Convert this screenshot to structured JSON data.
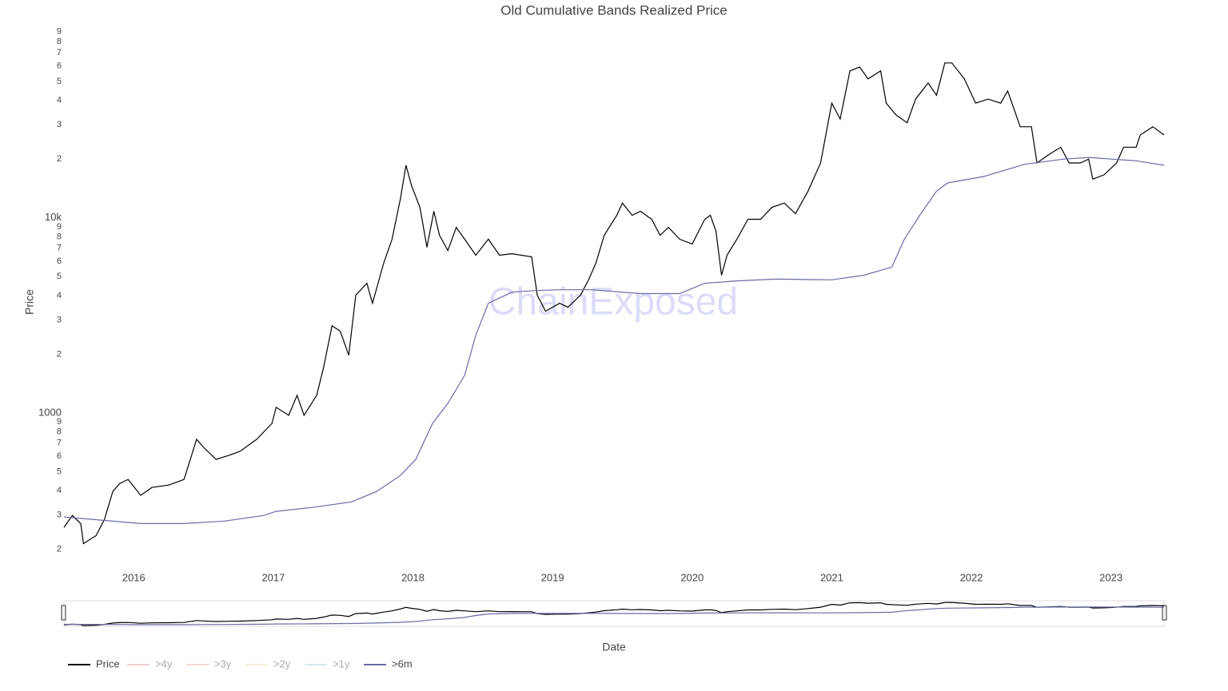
{
  "chart_data": {
    "type": "line",
    "title": "Old Cumulative Bands Realized Price",
    "watermark": "ChainExposed",
    "xlabel": "Date",
    "ylabel": "Price",
    "log_y": true,
    "grid": false,
    "legend": "bottom-left",
    "xlim": [
      2015.5,
      2023.38
    ],
    "xticks": [
      2016,
      2017,
      2018,
      2019,
      2020,
      2021,
      2022,
      2023
    ],
    "ylim": [
      178,
      94000
    ],
    "yticks": [
      {
        "value": 200,
        "label": "2"
      },
      {
        "value": 300,
        "label": "3"
      },
      {
        "value": 400,
        "label": "4"
      },
      {
        "value": 500,
        "label": "5"
      },
      {
        "value": 600,
        "label": "6"
      },
      {
        "value": 700,
        "label": "7"
      },
      {
        "value": 800,
        "label": "8"
      },
      {
        "value": 900,
        "label": "9"
      },
      1000,
      {
        "value": 2000,
        "label": "2"
      },
      {
        "value": 3000,
        "label": "3"
      },
      {
        "value": 4000,
        "label": "4"
      },
      {
        "value": 5000,
        "label": "5"
      },
      {
        "value": 6000,
        "label": "6"
      },
      {
        "value": 7000,
        "label": "7"
      },
      {
        "value": 8000,
        "label": "8"
      },
      {
        "value": 9000,
        "label": "9"
      },
      {
        "value": 10000,
        "label": "10k"
      },
      {
        "value": 20000,
        "label": "2"
      },
      {
        "value": 30000,
        "label": "3"
      },
      {
        "value": 40000,
        "label": "4"
      },
      {
        "value": 50000,
        "label": "5"
      },
      {
        "value": 60000,
        "label": "6"
      },
      {
        "value": 70000,
        "label": "7"
      },
      {
        "value": 80000,
        "label": "8"
      },
      {
        "value": 90000,
        "label": "9"
      }
    ],
    "series": [
      {
        "name": "Price",
        "color": "#000000",
        "visible": true,
        "x": [
          2015.5,
          2015.56,
          2015.62,
          2015.64,
          2015.73,
          2015.79,
          2015.85,
          2015.9,
          2015.96,
          2016.05,
          2016.13,
          2016.25,
          2016.36,
          2016.45,
          2016.5,
          2016.59,
          2016.68,
          2016.76,
          2016.88,
          2016.99,
          2017.02,
          2017.11,
          2017.17,
          2017.22,
          2017.31,
          2017.36,
          2017.42,
          2017.48,
          2017.54,
          2017.59,
          2017.67,
          2017.71,
          2017.79,
          2017.85,
          2017.91,
          2017.95,
          2017.99,
          2018.05,
          2018.1,
          2018.15,
          2018.19,
          2018.25,
          2018.31,
          2018.37,
          2018.45,
          2018.54,
          2018.62,
          2018.71,
          2018.85,
          2018.89,
          2018.95,
          2019.05,
          2019.11,
          2019.2,
          2019.26,
          2019.31,
          2019.37,
          2019.46,
          2019.5,
          2019.57,
          2019.63,
          2019.71,
          2019.77,
          2019.83,
          2019.91,
          2020.0,
          2020.09,
          2020.13,
          2020.17,
          2020.21,
          2020.25,
          2020.32,
          2020.4,
          2020.49,
          2020.57,
          2020.66,
          2020.74,
          2020.83,
          2020.92,
          2021.0,
          2021.06,
          2021.13,
          2021.2,
          2021.26,
          2021.35,
          2021.39,
          2021.46,
          2021.54,
          2021.6,
          2021.69,
          2021.75,
          2021.81,
          2021.86,
          2021.95,
          2022.03,
          2022.12,
          2022.21,
          2022.26,
          2022.35,
          2022.43,
          2022.47,
          2022.55,
          2022.64,
          2022.7,
          2022.78,
          2022.84,
          2022.87,
          2022.95,
          2023.04,
          2023.09,
          2023.18,
          2023.21,
          2023.3,
          2023.38
        ],
        "values": [
          259,
          298,
          271,
          214,
          235,
          284,
          396,
          435,
          456,
          378,
          415,
          427,
          456,
          732,
          666,
          578,
          606,
          635,
          732,
          884,
          1068,
          972,
          1231,
          972,
          1231,
          1715,
          2800,
          2620,
          1976,
          4013,
          4620,
          3650,
          5855,
          7772,
          12500,
          18600,
          14600,
          11300,
          7070,
          10800,
          8140,
          6800,
          8940,
          7772,
          6430,
          7772,
          6430,
          6550,
          6310,
          4013,
          3320,
          3650,
          3480,
          4013,
          4850,
          5855,
          8140,
          10300,
          11900,
          10300,
          10800,
          9830,
          8140,
          8940,
          7772,
          7340,
          9830,
          10300,
          8560,
          5080,
          6430,
          7772,
          9830,
          9830,
          11300,
          11900,
          10500,
          13700,
          19100,
          38700,
          32100,
          56600,
          59300,
          51500,
          56600,
          38700,
          33700,
          30700,
          40600,
          49100,
          42500,
          62200,
          62200,
          51500,
          38700,
          40600,
          38700,
          44700,
          29300,
          29300,
          19100,
          21000,
          23000,
          19100,
          19100,
          20000,
          15800,
          16600,
          19100,
          23000,
          23000,
          26600,
          29300,
          26600
        ]
      },
      {
        "name": ">4y",
        "color": "#e8a0ad",
        "visible": false
      },
      {
        "name": ">3y",
        "color": "#f2b0a0",
        "visible": false
      },
      {
        "name": ">2y",
        "color": "#f2e0b8",
        "visible": false
      },
      {
        "name": ">1y",
        "color": "#a8d8dc",
        "visible": false
      },
      {
        "name": ">6m",
        "color": "#6a6aa6",
        "visible": true,
        "x": [
          2015.5,
          2016.05,
          2016.36,
          2016.65,
          2016.93,
          2017.02,
          2017.28,
          2017.56,
          2017.74,
          2017.91,
          2018.02,
          2018.14,
          2018.25,
          2018.37,
          2018.45,
          2018.54,
          2018.71,
          2018.88,
          2019.05,
          2019.28,
          2019.63,
          2019.91,
          2020.09,
          2020.32,
          2020.6,
          2021.0,
          2021.23,
          2021.43,
          2021.52,
          2021.63,
          2021.75,
          2021.83,
          2022.09,
          2022.38,
          2022.66,
          2022.84,
          2023.18,
          2023.38
        ],
        "values": [
          293,
          271,
          271,
          279,
          298,
          313,
          328,
          350,
          396,
          478,
          578,
          884,
          1120,
          1560,
          2500,
          3650,
          4160,
          4240,
          4280,
          4280,
          4090,
          4090,
          4620,
          4750,
          4850,
          4810,
          5080,
          5590,
          7772,
          10300,
          13700,
          15100,
          16300,
          18800,
          20000,
          20400,
          19600,
          18600
        ]
      }
    ]
  }
}
